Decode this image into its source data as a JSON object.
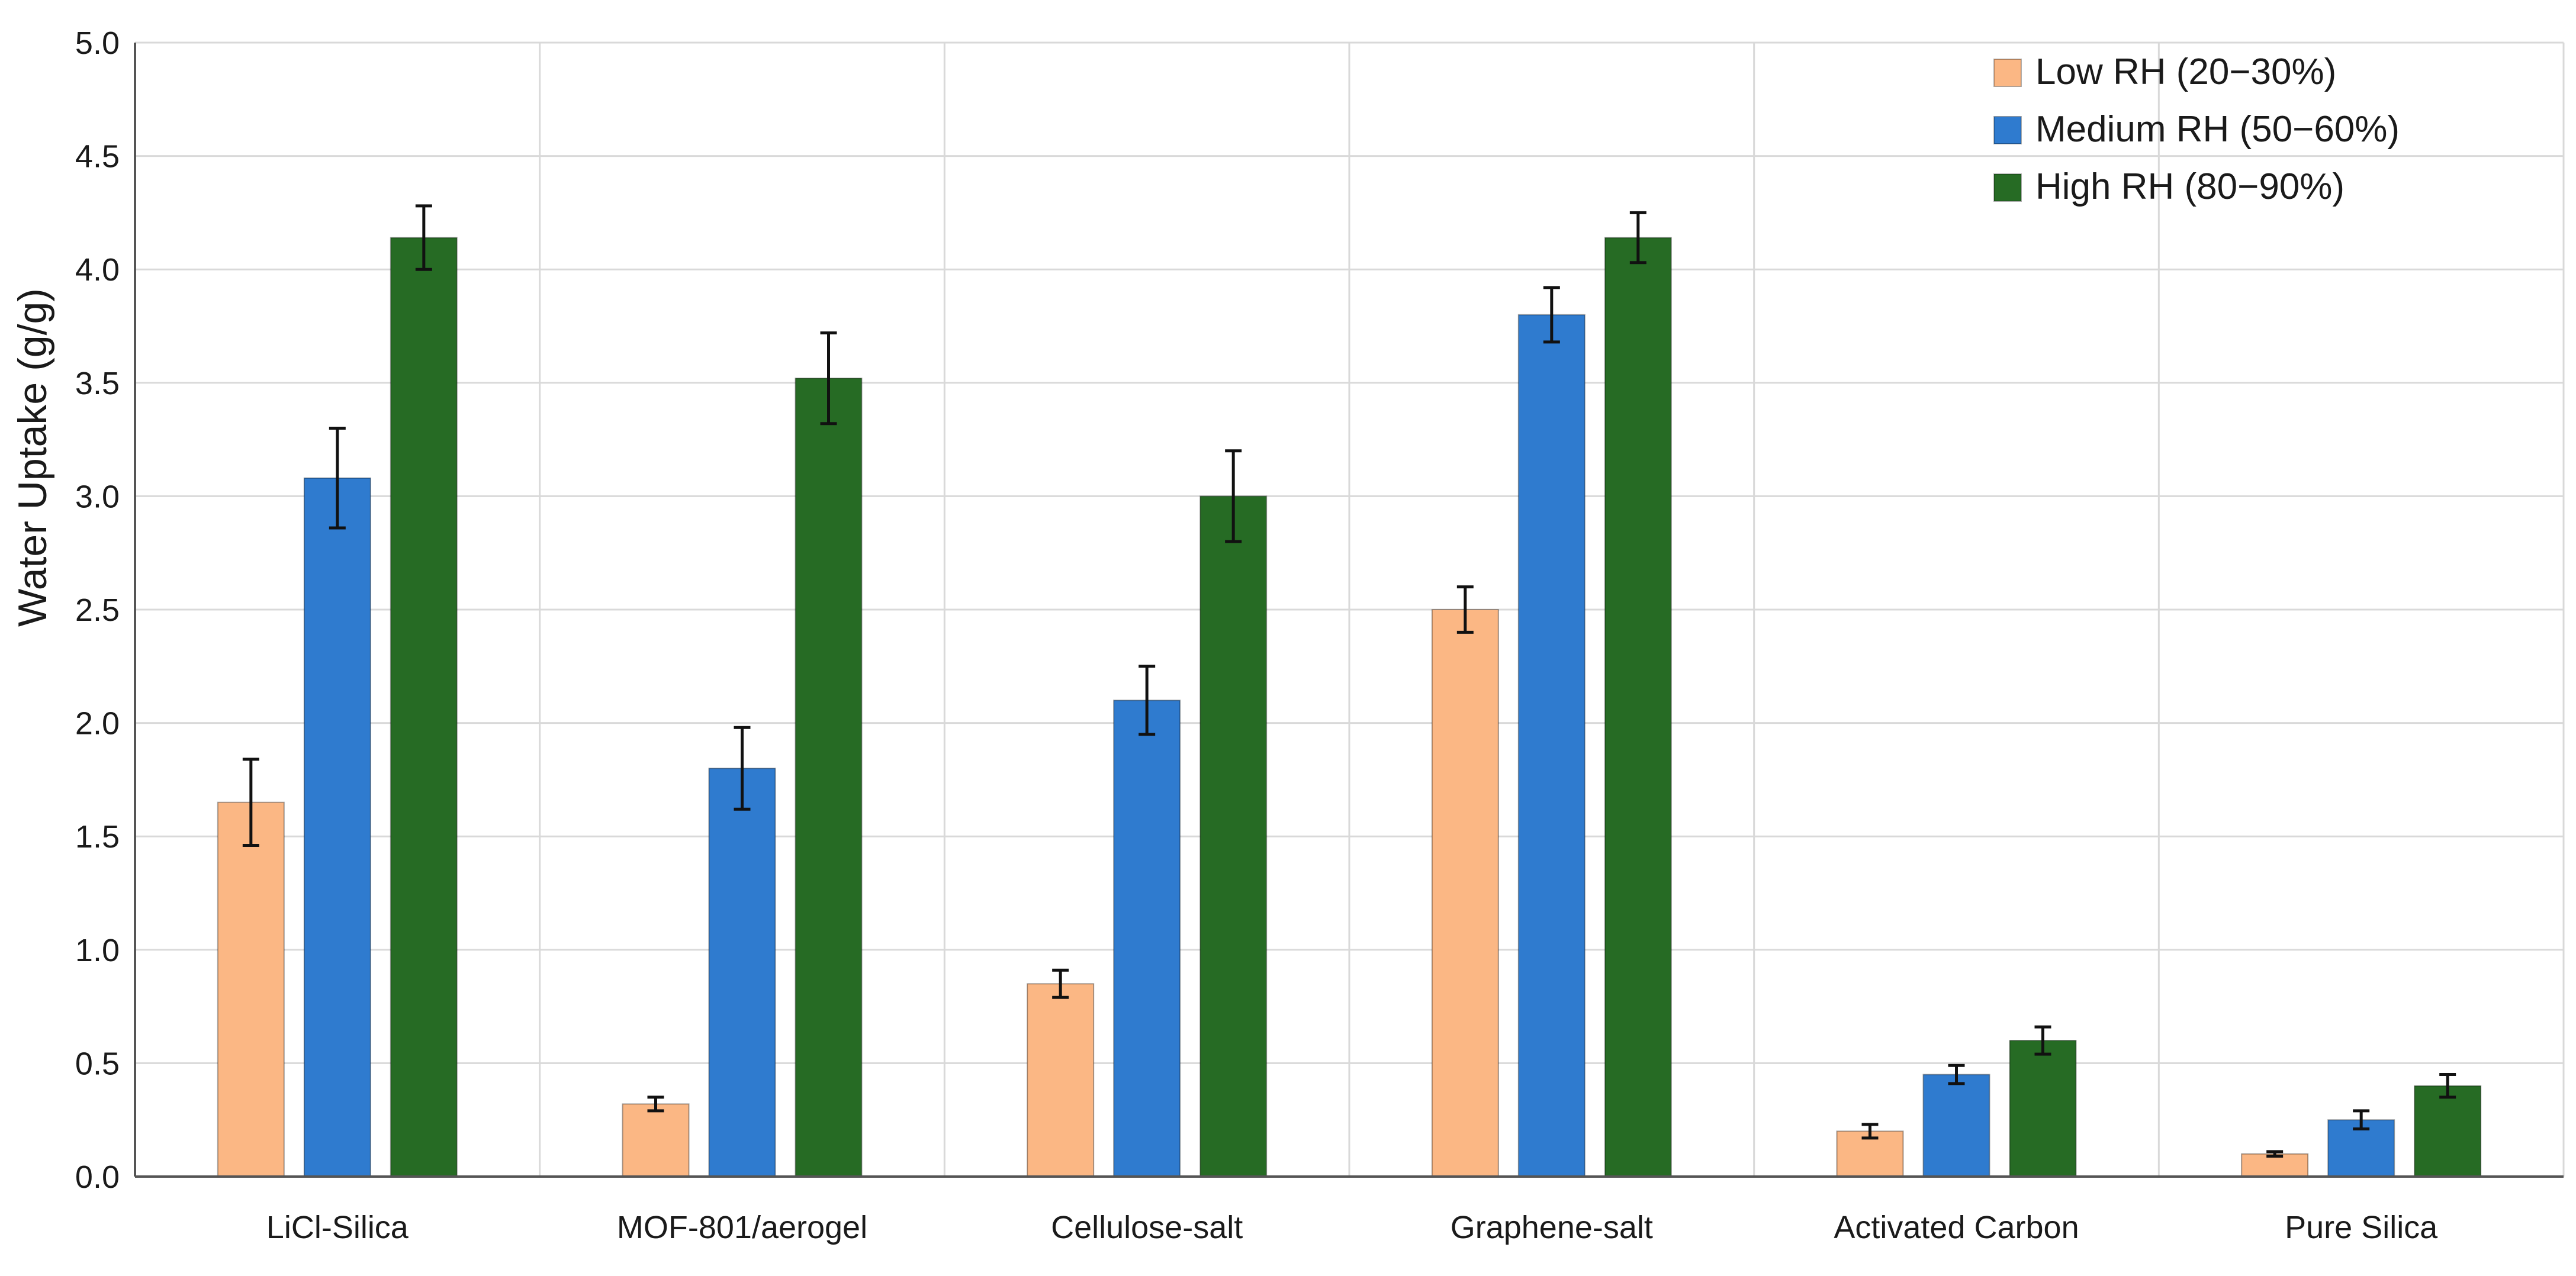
{
  "chart_data": {
    "type": "bar",
    "title": "",
    "xlabel": "",
    "ylabel": "Water Uptake (g/g)",
    "ylim": [
      0,
      5.0
    ],
    "ytick_step": 0.5,
    "yticks": [
      "0.0",
      "0.5",
      "1.0",
      "1.5",
      "2.0",
      "2.5",
      "3.0",
      "3.5",
      "4.0",
      "4.5",
      "5.0"
    ],
    "grid": true,
    "legend_position": "top-right",
    "categories": [
      "LiCl-Silica",
      "MOF-801/aerogel",
      "Cellulose-salt",
      "Graphene-salt",
      "Activated Carbon",
      "Pure Silica"
    ],
    "series": [
      {
        "name": "Low RH (20−30%)",
        "color": "#fbb784",
        "values": [
          1.65,
          0.32,
          0.85,
          2.5,
          0.2,
          0.1
        ],
        "errors": [
          0.19,
          0.03,
          0.06,
          0.1,
          0.03,
          0.01
        ]
      },
      {
        "name": "Medium RH (50−60%)",
        "color": "#2f7bcf",
        "values": [
          3.08,
          1.8,
          2.1,
          3.8,
          0.45,
          0.25
        ],
        "errors": [
          0.22,
          0.18,
          0.15,
          0.12,
          0.04,
          0.04
        ]
      },
      {
        "name": "High RH (80−90%)",
        "color": "#266b24",
        "values": [
          4.14,
          3.52,
          3.0,
          4.14,
          0.6,
          0.4
        ],
        "errors": [
          0.14,
          0.2,
          0.2,
          0.11,
          0.06,
          0.05
        ]
      }
    ]
  }
}
